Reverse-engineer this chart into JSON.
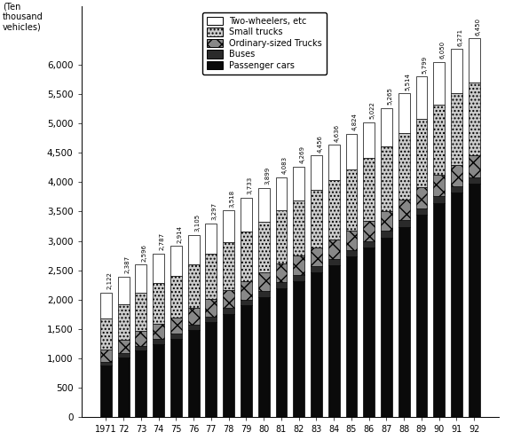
{
  "years": [
    "1971",
    "72",
    "73",
    "74",
    "75",
    "76",
    "77",
    "78",
    "79",
    "80",
    "81",
    "82",
    "83",
    "84",
    "85",
    "86",
    "87",
    "88",
    "89",
    "90",
    "91",
    "92"
  ],
  "totals": [
    2122,
    2387,
    2596,
    2787,
    2914,
    3105,
    3297,
    3518,
    3733,
    3899,
    4083,
    4269,
    4456,
    4636,
    4824,
    5022,
    5265,
    5514,
    5799,
    6050,
    6271,
    6450
  ],
  "passenger_cars": [
    870,
    1010,
    1130,
    1240,
    1330,
    1480,
    1620,
    1760,
    1900,
    2040,
    2190,
    2320,
    2460,
    2590,
    2730,
    2890,
    3060,
    3240,
    3450,
    3650,
    3820,
    3970
  ],
  "buses": [
    75,
    80,
    85,
    87,
    90,
    93,
    96,
    98,
    100,
    101,
    102,
    103,
    104,
    105,
    106,
    107,
    108,
    109,
    110,
    111,
    112,
    113
  ],
  "ordinary_trucks": [
    200,
    230,
    250,
    265,
    270,
    285,
    295,
    305,
    312,
    316,
    320,
    325,
    328,
    333,
    336,
    340,
    345,
    352,
    358,
    364,
    368,
    372
  ],
  "small_trucks": [
    530,
    600,
    645,
    690,
    715,
    745,
    775,
    810,
    845,
    870,
    905,
    940,
    975,
    1010,
    1040,
    1070,
    1100,
    1130,
    1165,
    1195,
    1220,
    1242
  ],
  "two_wheelers": [
    447,
    467,
    486,
    505,
    509,
    502,
    511,
    545,
    576,
    572,
    566,
    581,
    589,
    599,
    612,
    615,
    652,
    683,
    716,
    730,
    751,
    753
  ],
  "legend_labels": [
    "Two-wheelers, etc",
    "Small trucks",
    "Ordinary-sized Trucks",
    "Buses",
    "Passenger cars"
  ],
  "ylabel": "(Ten\nthousand\nvehicles)",
  "ylim": [
    0,
    7000
  ],
  "yticks": [
    0,
    500,
    1000,
    1500,
    2000,
    2500,
    3000,
    3500,
    4000,
    4500,
    5000,
    5500,
    6000
  ]
}
